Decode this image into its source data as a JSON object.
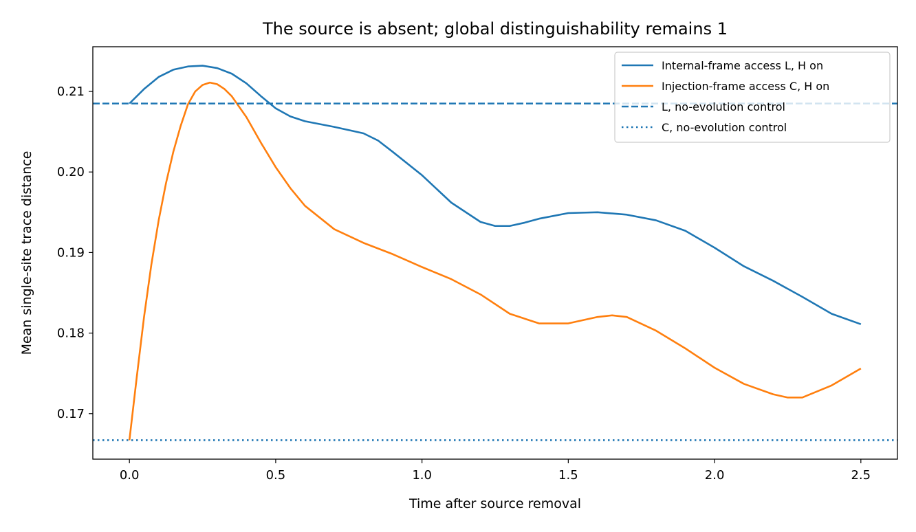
{
  "chart_data": {
    "type": "line",
    "title": "The source is absent; global distinguishability remains 1",
    "xlabel": "Time after source removal",
    "ylabel": "Mean single-site trace distance",
    "xlim": [
      -0.125,
      2.625
    ],
    "ylim": [
      0.16435,
      0.21555
    ],
    "xticks": [
      0.0,
      0.5,
      1.0,
      1.5,
      2.0,
      2.5
    ],
    "xtick_labels": [
      "0.0",
      "0.5",
      "1.0",
      "1.5",
      "2.0",
      "2.5"
    ],
    "yticks": [
      0.17,
      0.18,
      0.19,
      0.2,
      0.21
    ],
    "ytick_labels": [
      "0.17",
      "0.18",
      "0.19",
      "0.20",
      "0.21"
    ],
    "grid": false,
    "legend_position": "top-right",
    "series": [
      {
        "name": "Internal-frame access L, H on",
        "color": "#1f77b4",
        "style": "solid",
        "x": [
          0.0,
          0.05,
          0.1,
          0.15,
          0.2,
          0.25,
          0.3,
          0.35,
          0.4,
          0.45,
          0.5,
          0.55,
          0.6,
          0.7,
          0.8,
          0.85,
          0.9,
          1.0,
          1.1,
          1.2,
          1.25,
          1.3,
          1.35,
          1.4,
          1.5,
          1.6,
          1.7,
          1.8,
          1.9,
          2.0,
          2.1,
          2.2,
          2.3,
          2.4,
          2.5
        ],
        "y": [
          0.2085,
          0.2103,
          0.2118,
          0.2127,
          0.2131,
          0.2132,
          0.2129,
          0.2122,
          0.211,
          0.2094,
          0.2079,
          0.2069,
          0.2063,
          0.2056,
          0.2048,
          0.2039,
          0.2025,
          0.1996,
          0.1962,
          0.1938,
          0.1933,
          0.1933,
          0.1937,
          0.1942,
          0.1949,
          0.195,
          0.1947,
          0.194,
          0.1927,
          0.1906,
          0.1883,
          0.1865,
          0.1845,
          0.1824,
          0.1811
        ]
      },
      {
        "name": "Injection-frame access C, H on",
        "color": "#ff7f0e",
        "style": "solid",
        "x": [
          0.0,
          0.025,
          0.05,
          0.075,
          0.1,
          0.125,
          0.15,
          0.175,
          0.2,
          0.225,
          0.25,
          0.275,
          0.3,
          0.325,
          0.35,
          0.4,
          0.45,
          0.5,
          0.55,
          0.6,
          0.7,
          0.8,
          0.9,
          1.0,
          1.1,
          1.2,
          1.3,
          1.4,
          1.5,
          1.6,
          1.65,
          1.7,
          1.8,
          1.9,
          2.0,
          2.1,
          2.2,
          2.25,
          2.3,
          2.4,
          2.5
        ],
        "y": [
          0.1667,
          0.1745,
          0.182,
          0.1885,
          0.194,
          0.1986,
          0.2025,
          0.2057,
          0.2084,
          0.21,
          0.2108,
          0.2111,
          0.2109,
          0.2103,
          0.2094,
          0.2068,
          0.2036,
          0.2006,
          0.198,
          0.1958,
          0.1929,
          0.1912,
          0.1898,
          0.1882,
          0.1867,
          0.1848,
          0.1824,
          0.1812,
          0.1812,
          0.182,
          0.1822,
          0.182,
          0.1803,
          0.1781,
          0.1757,
          0.1737,
          0.1724,
          0.172,
          0.172,
          0.1735,
          0.1756
        ]
      },
      {
        "name": "L, no-evolution control",
        "color": "#1f77b4",
        "style": "dashed",
        "hline": 0.2085
      },
      {
        "name": "C, no-evolution control",
        "color": "#1f77b4",
        "style": "dotted",
        "hline": 0.1667
      }
    ]
  }
}
